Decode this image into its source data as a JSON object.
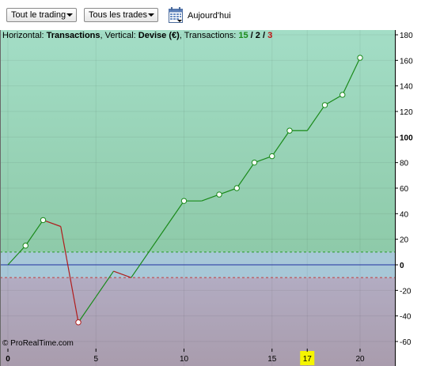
{
  "toolbar": {
    "filter_trading": "Tout le trading",
    "filter_trades": "Tous les trades",
    "date_button": "Aujourd'hui"
  },
  "info": {
    "horizontal_label": "Horizontal: ",
    "horizontal_value": "Transactions",
    "vertical_label": ", Vertical: ",
    "vertical_value": "Devise (€)",
    "transactions_label": ", Transactions: ",
    "count_total": "15",
    "count_mid": "2",
    "count_losing": "3",
    "slash": " / "
  },
  "copyright": "© ProRealTime.com",
  "colors": {
    "profit_zone_top": "#a3ddc6",
    "profit_zone_bottom": "#8ecaa9",
    "neutral_band": "#a8c8d8",
    "loss_zone_top": "#b2acc2",
    "loss_zone_bottom": "#a99cad",
    "line_gain": "#1a8a1a",
    "line_loss": "#b01c1c",
    "zero_line": "#2030a0",
    "highlight_tick": "#f5f500"
  },
  "chart_data": {
    "type": "line",
    "x": [
      0,
      1,
      2,
      3,
      4,
      5,
      6,
      7,
      8,
      9,
      10,
      11,
      12,
      13,
      14,
      15,
      16,
      17,
      18,
      19,
      20
    ],
    "y": [
      0,
      15,
      35,
      30,
      -45,
      -25,
      -5,
      -10,
      10,
      30,
      50,
      50,
      55,
      60,
      80,
      85,
      105,
      105,
      125,
      133,
      162
    ],
    "markers": [
      1,
      2,
      4,
      10,
      12,
      13,
      14,
      15,
      16,
      18,
      19,
      20
    ],
    "xlabel": "Transactions",
    "ylabel": "Devise (€)",
    "x_ticks": [
      "0",
      "5",
      "10",
      "15",
      "17",
      "20"
    ],
    "y_ticks": [
      "180",
      "160",
      "140",
      "120",
      "100",
      "80",
      "60",
      "40",
      "20",
      "0",
      "-20",
      "-40",
      "-60"
    ],
    "highlighted_x_tick": "17",
    "xlim": [
      0,
      22
    ],
    "ylim": [
      -64,
      183
    ],
    "band": [
      -10,
      10
    ],
    "grid": true
  }
}
